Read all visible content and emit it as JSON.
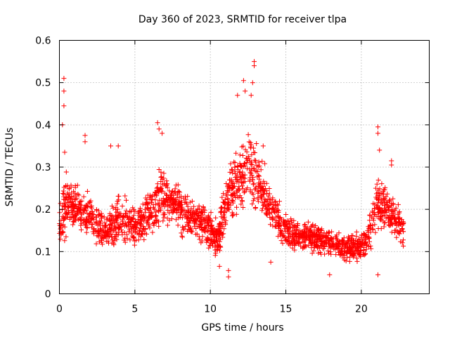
{
  "chart_data": {
    "type": "scatter",
    "title": "Day 360 of 2023, SRMTID for receiver tlpa",
    "xlabel": "GPS time / hours",
    "ylabel": "SRMTID / TECUs",
    "xlim": [
      0,
      24.5
    ],
    "ylim": [
      0,
      0.6
    ],
    "xticks": [
      0,
      5,
      10,
      15,
      20
    ],
    "xtick_labels": [
      "0",
      "5",
      "10",
      "15",
      "20"
    ],
    "yticks": [
      0,
      0.1,
      0.2,
      0.3,
      0.4,
      0.5,
      0.6
    ],
    "ytick_labels": [
      "0",
      "0.1",
      "0.2",
      "0.3",
      "0.4",
      "0.5",
      "0.6"
    ],
    "grid": true,
    "marker": "+",
    "color": "#ff0000",
    "series": [
      {
        "name": "SRMTID",
        "x_range": [
          0,
          22.8
        ],
        "trend_x": [
          0,
          0.4,
          1,
          2,
          3,
          4,
          5,
          6,
          6.7,
          7.5,
          8.5,
          9.5,
          10.5,
          11.2,
          12,
          12.7,
          13.3,
          14,
          15,
          16,
          17,
          18,
          19,
          20,
          20.6,
          21,
          21.5,
          22,
          22.8
        ],
        "trend_y": [
          0.15,
          0.22,
          0.2,
          0.19,
          0.14,
          0.18,
          0.16,
          0.19,
          0.23,
          0.22,
          0.18,
          0.17,
          0.13,
          0.23,
          0.28,
          0.3,
          0.26,
          0.2,
          0.15,
          0.14,
          0.13,
          0.12,
          0.11,
          0.11,
          0.15,
          0.22,
          0.2,
          0.19,
          0.15
        ],
        "spread_y": [
          0.06,
          0.1,
          0.07,
          0.07,
          0.05,
          0.07,
          0.06,
          0.07,
          0.09,
          0.07,
          0.06,
          0.06,
          0.06,
          0.09,
          0.1,
          0.11,
          0.09,
          0.07,
          0.05,
          0.05,
          0.05,
          0.04,
          0.04,
          0.04,
          0.06,
          0.08,
          0.07,
          0.06,
          0.05
        ],
        "outliers": [
          {
            "x": 0.3,
            "y": 0.51
          },
          {
            "x": 0.3,
            "y": 0.48
          },
          {
            "x": 0.3,
            "y": 0.445
          },
          {
            "x": 0.2,
            "y": 0.4
          },
          {
            "x": 0.35,
            "y": 0.335
          },
          {
            "x": 1.7,
            "y": 0.375
          },
          {
            "x": 1.7,
            "y": 0.36
          },
          {
            "x": 3.4,
            "y": 0.35
          },
          {
            "x": 3.9,
            "y": 0.35
          },
          {
            "x": 6.5,
            "y": 0.405
          },
          {
            "x": 6.6,
            "y": 0.39
          },
          {
            "x": 6.8,
            "y": 0.38
          },
          {
            "x": 11.8,
            "y": 0.47
          },
          {
            "x": 12.2,
            "y": 0.505
          },
          {
            "x": 12.3,
            "y": 0.48
          },
          {
            "x": 12.9,
            "y": 0.55
          },
          {
            "x": 12.9,
            "y": 0.54
          },
          {
            "x": 12.8,
            "y": 0.5
          },
          {
            "x": 12.7,
            "y": 0.47
          },
          {
            "x": 13.5,
            "y": 0.35
          },
          {
            "x": 21.1,
            "y": 0.395
          },
          {
            "x": 21.1,
            "y": 0.38
          },
          {
            "x": 21.2,
            "y": 0.34
          },
          {
            "x": 22.0,
            "y": 0.315
          },
          {
            "x": 22.0,
            "y": 0.305
          },
          {
            "x": 11.2,
            "y": 0.04
          },
          {
            "x": 11.2,
            "y": 0.055
          },
          {
            "x": 10.6,
            "y": 0.065
          },
          {
            "x": 17.9,
            "y": 0.045
          },
          {
            "x": 21.1,
            "y": 0.045
          },
          {
            "x": 14.0,
            "y": 0.075
          }
        ]
      }
    ]
  }
}
